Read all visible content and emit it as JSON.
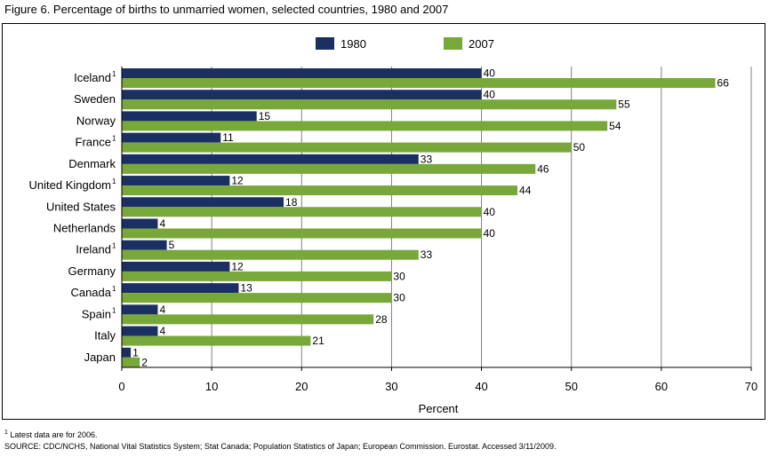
{
  "figure": {
    "title": "Figure 6.  Percentage of births to unmarried women, selected countries, 1980 and 2007",
    "footnote_marker": "1",
    "footnote": "Latest data are for 2006.",
    "source": "SOURCE: CDC/NCHS, National Vital Statistics System; Stat Canada; Population Statistics of Japan; European Commission.  Eurostat.  Accessed 3/11/2009."
  },
  "chart_data": {
    "type": "bar",
    "orientation": "horizontal",
    "categories": [
      "Iceland",
      "Sweden",
      "Norway",
      "France",
      "Denmark",
      "United Kingdom",
      "United States",
      "Netherlands",
      "Ireland",
      "Germany",
      "Canada",
      "Spain",
      "Italy",
      "Japan"
    ],
    "footnoted": [
      true,
      false,
      false,
      true,
      false,
      true,
      false,
      false,
      true,
      false,
      true,
      true,
      false,
      false
    ],
    "series": [
      {
        "name": "1980",
        "color": "#1c2f63",
        "values": [
          40,
          40,
          15,
          11,
          33,
          12,
          18,
          4,
          5,
          12,
          13,
          4,
          4,
          1
        ]
      },
      {
        "name": "2007",
        "color": "#78a83a",
        "values": [
          66,
          55,
          54,
          50,
          46,
          44,
          40,
          40,
          33,
          30,
          30,
          28,
          21,
          2
        ]
      }
    ],
    "xlabel": "Percent",
    "xlim": [
      0,
      70
    ],
    "xticks": [
      "0",
      "10",
      "20",
      "30",
      "40",
      "50",
      "60",
      "70"
    ],
    "legend_position": "top-center",
    "grid": true,
    "grid_color": "#808080"
  }
}
